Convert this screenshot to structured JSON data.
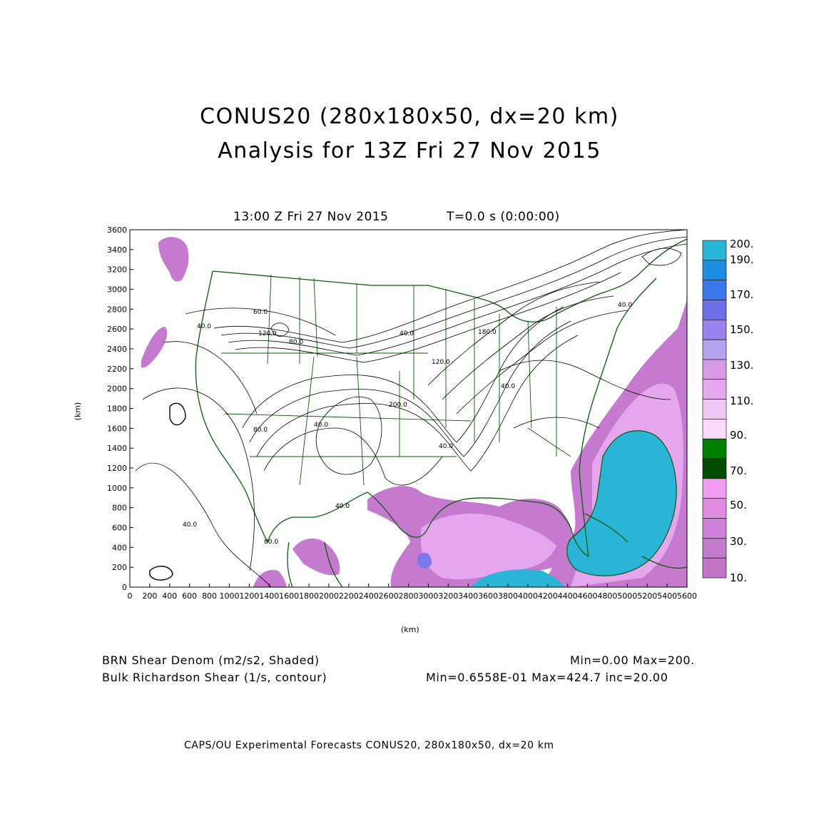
{
  "header": {
    "title_line1": "CONUS20 (280x180x50, dx=20 km)",
    "title_line2": "Analysis for 13Z Fri 27 Nov 2015",
    "time_label": "13:00 Z Fri 27 Nov 2015",
    "time_step": "T=0.0 s (0:00:00)"
  },
  "axes": {
    "x_label": "(km)",
    "y_label": "(km)",
    "x_ticks": [
      "0",
      "200",
      "400",
      "600",
      "800",
      "1000",
      "1200",
      "1400",
      "1600",
      "1800",
      "2000",
      "2200",
      "2400",
      "2600",
      "2800",
      "3000",
      "3200",
      "3400",
      "3600",
      "3800",
      "4000",
      "4200",
      "4400",
      "4600",
      "4800",
      "5000",
      "5200",
      "5400",
      "5600"
    ],
    "y_ticks": [
      "0",
      "200",
      "400",
      "600",
      "800",
      "1000",
      "1200",
      "1400",
      "1600",
      "1800",
      "2000",
      "2200",
      "2400",
      "2600",
      "2800",
      "3000",
      "3200",
      "3400",
      "3600"
    ]
  },
  "colorbar": {
    "labels": [
      "200.",
      "190.",
      "170.",
      "150.",
      "130.",
      "110.",
      "90.",
      "70.",
      "50.",
      "30.",
      "10."
    ],
    "colors": [
      "#2ab4d6",
      "#1e8fe0",
      "#3c78ec",
      "#6e6ee6",
      "#9a82ec",
      "#b4a4ee",
      "#d69ae6",
      "#e4a8ec",
      "#f0c8f4",
      "#fbdcfb",
      "#008000",
      "#004c00",
      "#f19cf0",
      "#e08ce4",
      "#cf80d8",
      "#c27acb",
      "#c075c7"
    ]
  },
  "contour_labels": [
    "40.0",
    "40.0",
    "80.0",
    "120.0",
    "40.0",
    "60.0",
    "80.0",
    "40.0",
    "120.0",
    "40.0",
    "200.0",
    "180.0",
    "40.0",
    "40.0",
    "40.0",
    "80.0"
  ],
  "legend": {
    "shaded_name": "BRN Shear Denom (m2/s2, Shaded)",
    "shaded_range": "Min=0.00 Max=200.",
    "contour_name": "Bulk Richardson Shear (1/s, contour)",
    "contour_range": "Min=0.6558E-01 Max=424.7 inc=20.00"
  },
  "footer": "CAPS/OU Experimental Forecasts  CONUS20, 280x180x50, dx=20 km"
}
